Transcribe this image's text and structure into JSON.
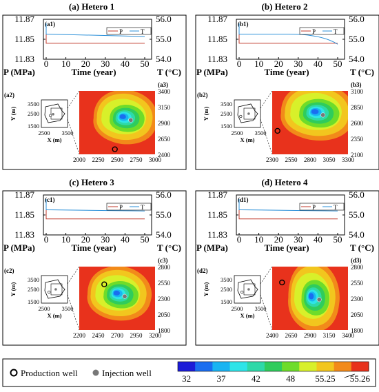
{
  "panels": [
    {
      "id": "p1",
      "title": "(a) Hetero 1",
      "ts_label": "(a1)",
      "map_label": "(a3)",
      "inset_label": "(a2)",
      "pt_final": {
        "P": 11.846,
        "T": 55.14
      },
      "t_curve_end": 55.14,
      "map": {
        "x_ticks": [
          "2000",
          "2250",
          "2500",
          "2750",
          "3000"
        ],
        "y_ticks": [
          "3400",
          "3150",
          "2900",
          "2650",
          "2400"
        ],
        "plume": "compact",
        "cold_center": [
          0.68,
          0.46
        ],
        "production_well": [
          0.47,
          0.92
        ]
      },
      "inset": {
        "injector": [
          0.45,
          0.52
        ],
        "producer": [
          0.45,
          0.52
        ]
      }
    },
    {
      "id": "p2",
      "title": "(b) Hetero 2",
      "ts_label": "(b1)",
      "map_label": "(b3)",
      "inset_label": "(b2)",
      "pt_final": {
        "P": 11.846,
        "T": 54.75
      },
      "t_curve_end": 54.75,
      "map": {
        "x_ticks": [
          "2300",
          "2550",
          "2800",
          "3050",
          "3300"
        ],
        "y_ticks": [
          "3100",
          "2850",
          "2600",
          "2350",
          "2100"
        ],
        "plume": "wide",
        "cold_center": [
          0.67,
          0.38
        ],
        "production_well": [
          0.07,
          0.63
        ]
      },
      "inset": {
        "injector": [
          0.55,
          0.5
        ],
        "producer": [
          0.35,
          0.55
        ]
      }
    },
    {
      "id": "p3",
      "title": "(c) Hetero 3",
      "ts_label": "(c1)",
      "map_label": "(c3)",
      "inset_label": "(c2)",
      "pt_final": {
        "P": 11.846,
        "T": 55.2
      },
      "t_curve_end": 55.2,
      "map": {
        "x_ticks": [
          "2200",
          "2450",
          "2700",
          "2950",
          "3200"
        ],
        "y_ticks": [
          "2800",
          "2550",
          "2300",
          "2050",
          "1800"
        ],
        "plume": "compact",
        "cold_center": [
          0.6,
          0.47
        ],
        "production_well": [
          0.33,
          0.28
        ]
      },
      "inset": {
        "injector": [
          0.55,
          0.5
        ],
        "producer": [
          0.4,
          0.55
        ]
      }
    },
    {
      "id": "p4",
      "title": "(d) Hetero 4",
      "ts_label": "(d1)",
      "map_label": "(d3)",
      "inset_label": "(d2)",
      "pt_final": {
        "P": 11.846,
        "T": 55.2
      },
      "t_curve_end": 55.2,
      "map": {
        "x_ticks": [
          "2400",
          "2650",
          "2900",
          "3150",
          "3400"
        ],
        "y_ticks": [
          "2800",
          "2550",
          "2300",
          "2050",
          "1800"
        ],
        "plume": "vertical",
        "cold_center": [
          0.62,
          0.52
        ],
        "production_well": [
          0.13,
          0.25
        ]
      },
      "inset": {
        "injector": [
          0.55,
          0.5
        ],
        "producer": [
          0.4,
          0.55
        ]
      }
    }
  ],
  "axes": {
    "p_ticks": [
      "11.87",
      "11.85",
      "11.83"
    ],
    "t_ticks": [
      "56.0",
      "55.0",
      "54.0"
    ],
    "x_ticks": [
      "0",
      "10",
      "20",
      "30",
      "40",
      "50"
    ],
    "p_label": "P (MPa)",
    "t_label": "T (°C)",
    "x_label": "Time (year)",
    "inset_x_ticks": [
      "2500",
      "3500"
    ],
    "inset_y_ticks": [
      "3500",
      "2500",
      "1500"
    ],
    "inset_xlabel": "X (m)",
    "inset_ylabel": "Y (m)"
  },
  "legend_series": {
    "p": "P",
    "t": "T"
  },
  "colors": {
    "p_line": "#c0392b",
    "t_line": "#2a8fd8"
  },
  "chart_data": {
    "type": "line",
    "x": [
      0,
      10,
      20,
      30,
      40,
      50
    ],
    "xlabel": "Time (year)",
    "xlim": [
      0,
      50
    ],
    "y_left": {
      "label": "P (MPa)",
      "ylim": [
        11.83,
        11.87
      ]
    },
    "y_right": {
      "label": "T (°C)",
      "ylim": [
        54.0,
        56.0
      ]
    },
    "series": [
      {
        "name": "P",
        "values": [
          11.846,
          11.846,
          11.846,
          11.846,
          11.846,
          11.846
        ]
      },
      {
        "name": "T",
        "values": [
          55.26,
          55.26,
          55.26,
          55.26,
          55.26,
          55.26
        ]
      }
    ]
  },
  "footer": {
    "production_label": "Production well",
    "injection_label": "Injection well",
    "colorbar_colors": [
      "#1c1cd8",
      "#1a6ef0",
      "#19b4f2",
      "#2ee4e8",
      "#2ed9a8",
      "#2fcc5c",
      "#6edc2a",
      "#d8f02a",
      "#f2c61e",
      "#f28a1a",
      "#e8321c"
    ],
    "colorbar_ticks": [
      "32",
      "37",
      "42",
      "48",
      "55.25",
      "55.26"
    ]
  }
}
